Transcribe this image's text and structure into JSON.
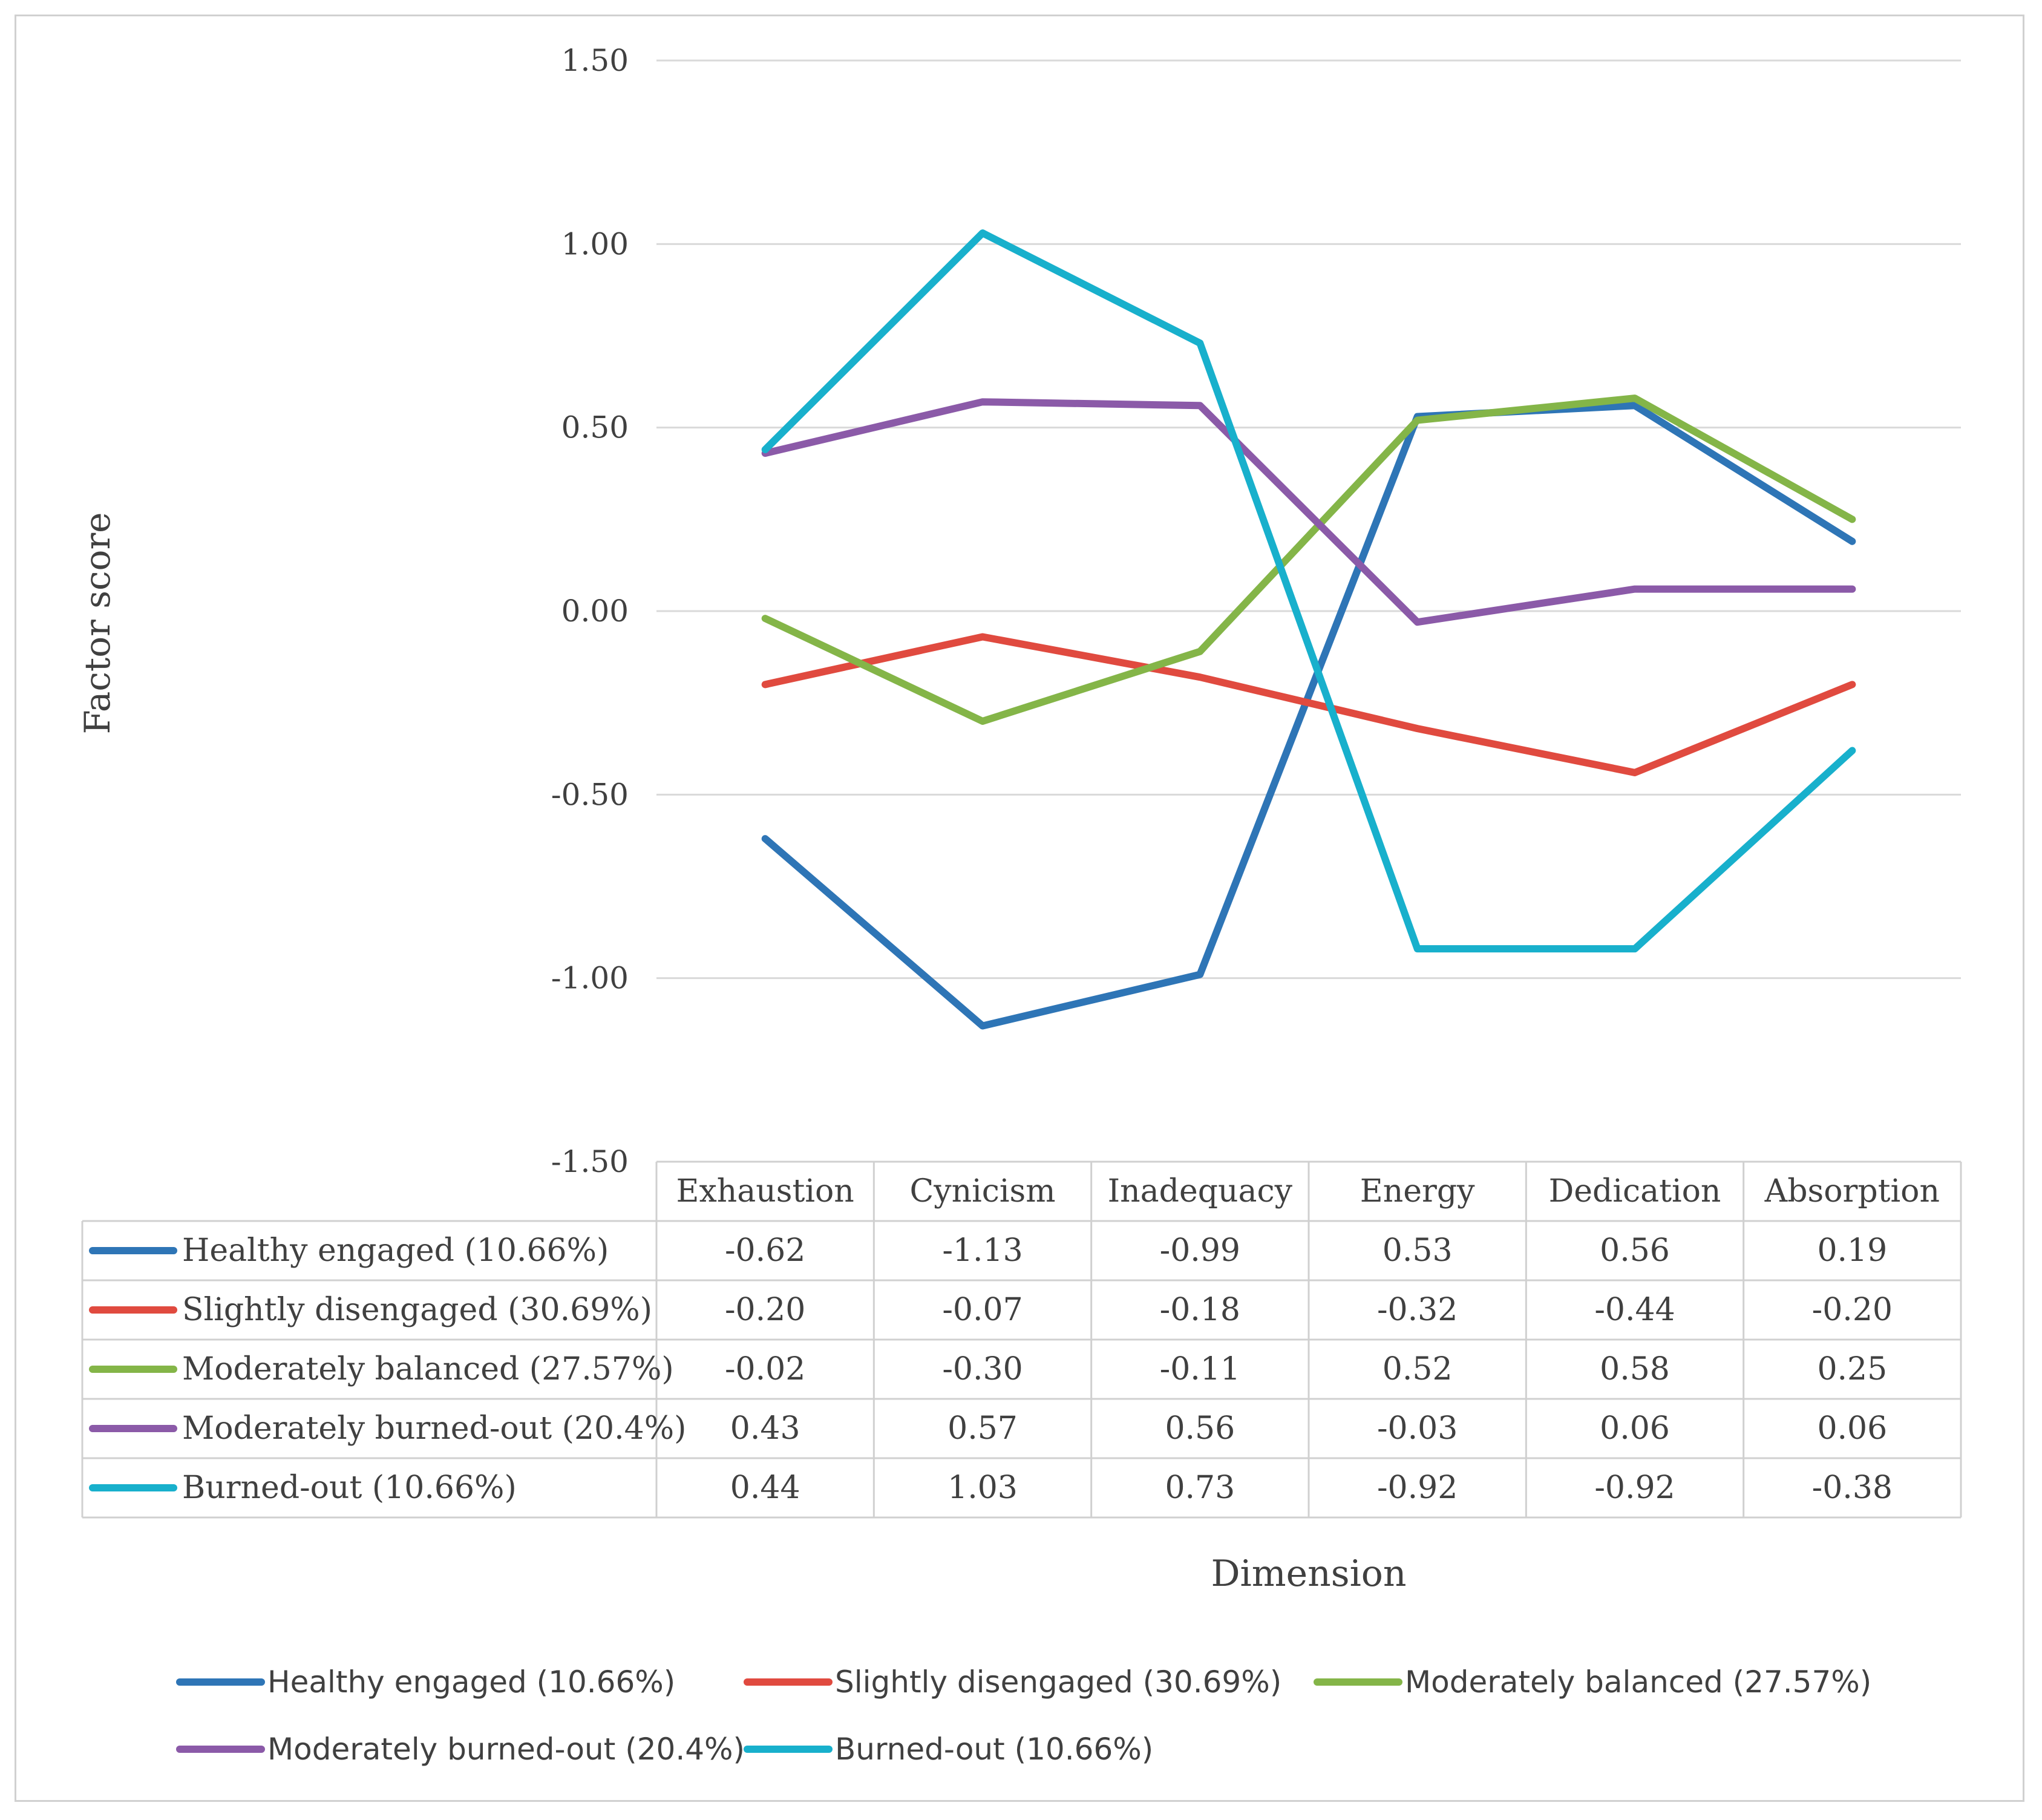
{
  "chart_data": {
    "type": "line",
    "title": "",
    "xlabel": "Dimension",
    "ylabel": "Factor score",
    "ylim": [
      -1.5,
      1.5
    ],
    "yticks": [
      "1.50",
      "1.00",
      "0.50",
      "0.00",
      "-0.50",
      "-1.00",
      "-1.50"
    ],
    "ytick_values": [
      1.5,
      1.0,
      0.5,
      0.0,
      -0.5,
      -1.0,
      -1.5
    ],
    "grid": true,
    "legend_position": "bottom",
    "categories": [
      "Exhaustion",
      "Cynicism",
      "Inadequacy",
      "Energy",
      "Dedication",
      "Absorption"
    ],
    "series": [
      {
        "name": "Healthy engaged (10.66%)",
        "color": "#2e75b6",
        "values": [
          -0.62,
          -1.13,
          -0.99,
          0.53,
          0.56,
          0.19
        ],
        "labels": [
          "-0.62",
          "-1.13",
          "-0.99",
          "0.53",
          "0.56",
          "0.19"
        ]
      },
      {
        "name": "Slightly disengaged (30.69%)",
        "color": "#e04a3f",
        "values": [
          -0.2,
          -0.07,
          -0.18,
          -0.32,
          -0.44,
          -0.2
        ],
        "labels": [
          "-0.20",
          "-0.07",
          "-0.18",
          "-0.32",
          "-0.44",
          "-0.20"
        ]
      },
      {
        "name": "Moderately balanced (27.57%)",
        "color": "#84b548",
        "values": [
          -0.02,
          -0.3,
          -0.11,
          0.52,
          0.58,
          0.25
        ],
        "labels": [
          "-0.02",
          "-0.30",
          "-0.11",
          "0.52",
          "0.58",
          "0.25"
        ]
      },
      {
        "name": "Moderately burned-out (20.4%)",
        "color": "#8b5aa8",
        "values": [
          0.43,
          0.57,
          0.56,
          -0.03,
          0.06,
          0.06
        ],
        "labels": [
          "0.43",
          "0.57",
          "0.56",
          "-0.03",
          "0.06",
          "0.06"
        ]
      },
      {
        "name": "Burned-out (10.66%)",
        "color": "#18b0cc",
        "values": [
          0.44,
          1.03,
          0.73,
          -0.92,
          -0.92,
          -0.38
        ],
        "labels": [
          "0.44",
          "1.03",
          "0.73",
          "-0.92",
          "-0.92",
          "-0.38"
        ]
      }
    ]
  }
}
